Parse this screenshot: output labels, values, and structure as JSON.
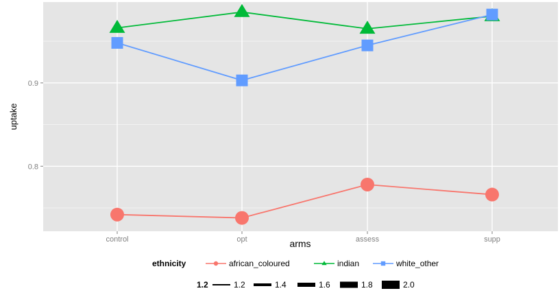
{
  "chart_data": {
    "type": "line",
    "xlabel": "arms",
    "ylabel": "uptake",
    "categories": [
      "control",
      "opt",
      "assess",
      "supp"
    ],
    "ylim": [
      0.722,
      0.997
    ],
    "yticks": [
      0.8,
      0.9
    ],
    "ytick_labels": [
      "0.8",
      "0.9"
    ],
    "grid": true,
    "series": [
      {
        "name": "african_coloured",
        "marker": "circle",
        "color": "#F8766D",
        "values": [
          0.742,
          0.738,
          0.778,
          0.766
        ]
      },
      {
        "name": "indian",
        "marker": "triangle",
        "color": "#00BA38",
        "values": [
          0.966,
          0.985,
          0.965,
          0.98
        ]
      },
      {
        "name": "white_other",
        "marker": "square",
        "color": "#619CFF",
        "values": [
          0.948,
          0.903,
          0.945,
          0.982
        ]
      }
    ],
    "legend": {
      "position": "bottom",
      "ethnicity_title": "ethnicity",
      "size_title": "1.2",
      "size_labels": [
        "1.2",
        "1.4",
        "1.6",
        "1.8",
        "2.0"
      ]
    }
  }
}
